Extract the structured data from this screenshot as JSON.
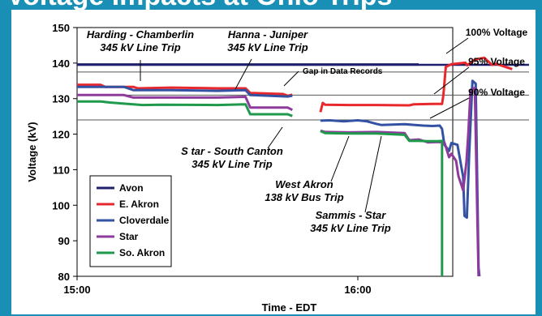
{
  "banner_title": "Voltage Impacts at Ohio Trips",
  "chart_data": {
    "type": "line",
    "xlabel": "Time - EDT",
    "ylabel": "Voltage (kV)",
    "ylim": [
      80,
      150
    ],
    "yticks": [
      80,
      90,
      100,
      110,
      120,
      130,
      140,
      150
    ],
    "xlim": [
      "15:00",
      "16:13"
    ],
    "xticks": [
      {
        "label": "15:00",
        "t": 0
      },
      {
        "label": "16:00",
        "t": 60
      }
    ],
    "grid": false,
    "legend_position": "bottom-left",
    "reference_lines": [
      {
        "label": "100% Voltage",
        "value": 139.5,
        "color": "#1f1f6e"
      },
      {
        "label": "95% Voltage",
        "value": 137.5,
        "color": "#555555"
      },
      {
        "label": "Gap in Data Records",
        "value": 131,
        "color": "#555555"
      },
      {
        "label": "90% Voltage",
        "value": 124,
        "color": "#555555"
      }
    ],
    "series": [
      {
        "name": "Avon",
        "color": "#1f1f6e",
        "points": [
          [
            0,
            139.6
          ],
          [
            73,
            139.6
          ]
        ]
      },
      {
        "name": "E. Akron",
        "color": "#e8282d",
        "points": [
          [
            0,
            133.9
          ],
          [
            5,
            133.9
          ],
          [
            6,
            133.3
          ],
          [
            12,
            133.3
          ],
          [
            13,
            132.9
          ],
          [
            20,
            133.1
          ],
          [
            30,
            132.9
          ],
          [
            36,
            132.9
          ],
          [
            37,
            131.6
          ],
          [
            44,
            131.3
          ],
          [
            45,
            130.8
          ],
          [
            46,
            131.1
          ],
          null,
          [
            52,
            126.2
          ],
          [
            52.5,
            128.8
          ],
          [
            53,
            128.3
          ],
          [
            58,
            128.2
          ],
          [
            64,
            128.2
          ],
          [
            71,
            128.1
          ],
          [
            72,
            128.4
          ],
          [
            76,
            128.5
          ],
          [
            78,
            128.5
          ],
          [
            78.3,
            131
          ],
          [
            78.8,
            138.9
          ],
          [
            80,
            139.7
          ],
          [
            83,
            140.1
          ],
          [
            83.4,
            139.4
          ],
          [
            85,
            141
          ],
          [
            87,
            141.5
          ],
          [
            88.7,
            139.5
          ],
          [
            89.5,
            139.8
          ],
          [
            93,
            138.3
          ]
        ]
      },
      {
        "name": "Cloverdale",
        "color": "#3452a3",
        "points": [
          [
            0,
            133.3
          ],
          [
            10,
            133.3
          ],
          [
            12,
            132.4
          ],
          [
            20,
            132.4
          ],
          [
            30,
            132.2
          ],
          [
            36,
            132.4
          ],
          [
            37,
            131
          ],
          [
            45,
            130.6
          ],
          [
            46,
            130.8
          ],
          null,
          [
            52,
            123.8
          ],
          [
            54,
            123.9
          ],
          [
            57,
            123.6
          ],
          [
            60,
            123.9
          ],
          [
            62,
            123.6
          ],
          [
            64,
            122.9
          ],
          [
            65,
            122.6
          ],
          [
            70,
            122.8
          ],
          [
            74,
            122.4
          ],
          [
            76,
            122.3
          ],
          [
            77.5,
            122.4
          ],
          [
            78,
            121.5
          ],
          [
            78.5,
            117
          ],
          [
            79.5,
            115.3
          ],
          [
            80,
            117.5
          ],
          [
            81.3,
            117
          ],
          [
            82.5,
            108
          ],
          [
            82.8,
            97
          ],
          [
            83.3,
            96.5
          ],
          [
            83.8,
            114
          ],
          [
            84.5,
            135
          ],
          [
            85.2,
            134.2
          ],
          [
            85.8,
            82.5
          ],
          [
            86,
            80
          ]
        ]
      },
      {
        "name": "Star",
        "color": "#8e3a9d",
        "points": [
          [
            0,
            131
          ],
          [
            10,
            131
          ],
          [
            12,
            130.3
          ],
          [
            20,
            130.3
          ],
          [
            30,
            130.3
          ],
          [
            36,
            130.5
          ],
          [
            37,
            127.5
          ],
          [
            44,
            127.5
          ],
          [
            45,
            127.5
          ],
          [
            46,
            126.8
          ],
          null,
          [
            52,
            121
          ],
          [
            53,
            120.6
          ],
          [
            58,
            120.5
          ],
          [
            64,
            120.6
          ],
          [
            70,
            120.3
          ],
          [
            71,
            118.3
          ],
          [
            73,
            118.5
          ],
          [
            75,
            117.7
          ],
          [
            77,
            117.8
          ],
          [
            78.5,
            117.7
          ],
          [
            79.5,
            113.5
          ],
          [
            80,
            114.5
          ],
          [
            81,
            112.5
          ],
          [
            81.5,
            108.2
          ],
          [
            82.5,
            104.2
          ],
          [
            83.2,
            112
          ],
          [
            83.6,
            120
          ],
          [
            84.1,
            132.3
          ],
          [
            85,
            133
          ],
          [
            85.5,
            100
          ],
          [
            85.8,
            80
          ]
        ]
      },
      {
        "name": "So. Akron",
        "color": "#1f9a4d",
        "points": [
          [
            0,
            129.2
          ],
          [
            5,
            129.2
          ],
          [
            7,
            128.9
          ],
          [
            10,
            128.6
          ],
          [
            14,
            128.2
          ],
          [
            18,
            128.3
          ],
          [
            30,
            128.2
          ],
          [
            36,
            128.4
          ],
          [
            37,
            125.6
          ],
          [
            45,
            125.6
          ],
          [
            46,
            125.1
          ],
          null,
          [
            52,
            120.9
          ],
          [
            53,
            120.3
          ],
          [
            58,
            120.2
          ],
          [
            64,
            120.2
          ],
          [
            70,
            119.8
          ],
          [
            71,
            118.1
          ],
          [
            73,
            118.1
          ],
          [
            75,
            118
          ],
          [
            77,
            118
          ],
          [
            78,
            118.1
          ],
          [
            78,
            80
          ]
        ]
      }
    ],
    "annotations": [
      {
        "lines": [
          "Harding - Chamberlin",
          "345 kV Line Trip"
        ]
      },
      {
        "lines": [
          "Hanna - Juniper",
          "345 kV Line Trip"
        ]
      },
      {
        "lines": [
          "S tar - South Canton",
          "345 kV Line Trip"
        ]
      },
      {
        "lines": [
          "West Akron",
          "138 kV Bus Trip"
        ]
      },
      {
        "lines": [
          "Sammis - Star",
          "345 kV Line Trip"
        ]
      }
    ]
  }
}
